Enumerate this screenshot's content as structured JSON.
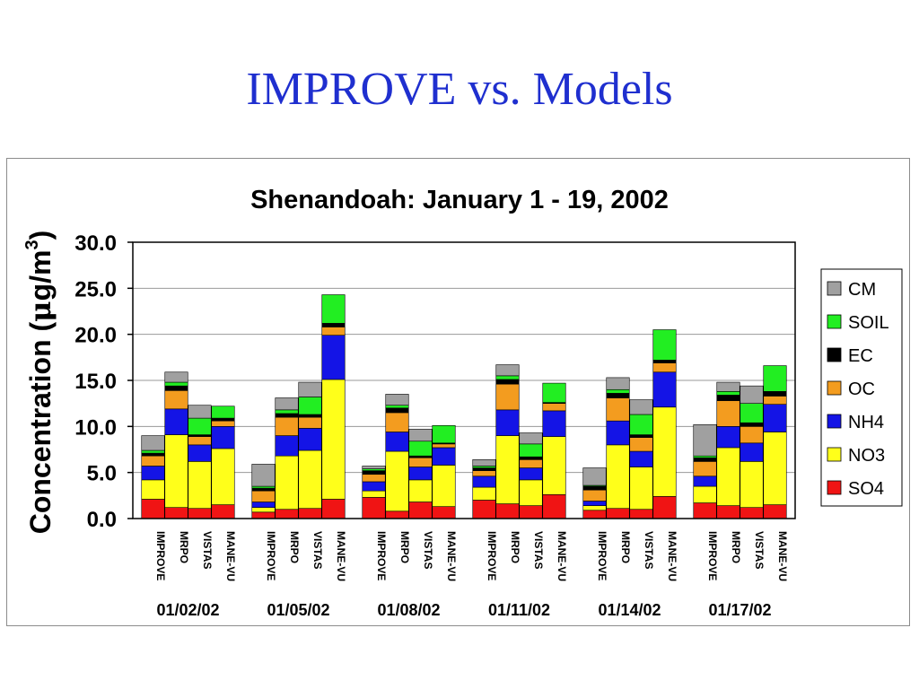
{
  "slide": {
    "title": "IMPROVE vs. Models"
  },
  "chart_data": {
    "type": "bar",
    "stacked": true,
    "title": "Shenandoah: January 1 - 19, 2002",
    "ylabel_main": "Concentration (",
    "ylabel_mu": "μ",
    "ylabel_rest": "g/m",
    "ylabel_sup": "3",
    "ylabel_close": ")",
    "ylim": [
      0,
      30
    ],
    "yticks": [
      "0.0",
      "5.0",
      "10.0",
      "15.0",
      "20.0",
      "25.0",
      "30.0"
    ],
    "grid": true,
    "legend_position": "right",
    "legend": [
      {
        "name": "CM",
        "color": "#a0a0a0"
      },
      {
        "name": "SOIL",
        "color": "#22ee22"
      },
      {
        "name": "EC",
        "color": "#000000"
      },
      {
        "name": "OC",
        "color": "#f39c1f"
      },
      {
        "name": "NH4",
        "color": "#1414e6"
      },
      {
        "name": "NO3",
        "color": "#ffff1a"
      },
      {
        "name": "SO4",
        "color": "#f01414"
      }
    ],
    "stack_order": [
      "SO4",
      "NO3",
      "NH4",
      "OC",
      "EC",
      "SOIL",
      "CM"
    ],
    "colors": {
      "SO4": "#f01414",
      "NO3": "#ffff1a",
      "NH4": "#1414e6",
      "OC": "#f39c1f",
      "EC": "#000000",
      "SOIL": "#22ee22",
      "CM": "#a0a0a0"
    },
    "models": [
      "IMPROVE",
      "MRPO",
      "VISTAS",
      "MANE-VU"
    ],
    "groups": [
      {
        "date": "01/02/02",
        "bars": [
          {
            "SO4": 2.1,
            "NO3": 2.1,
            "NH4": 1.5,
            "OC": 1.1,
            "EC": 0.3,
            "SOIL": 0.3,
            "CM": 1.6
          },
          {
            "SO4": 1.2,
            "NO3": 7.9,
            "NH4": 2.8,
            "OC": 2.0,
            "EC": 0.5,
            "SOIL": 0.4,
            "CM": 1.1
          },
          {
            "SO4": 1.1,
            "NO3": 5.1,
            "NH4": 1.8,
            "OC": 0.9,
            "EC": 0.2,
            "SOIL": 1.8,
            "CM": 1.4
          },
          {
            "SO4": 1.5,
            "NO3": 6.1,
            "NH4": 2.4,
            "OC": 0.6,
            "EC": 0.3,
            "SOIL": 1.3,
            "CM": 0.0
          }
        ]
      },
      {
        "date": "01/05/02",
        "bars": [
          {
            "SO4": 0.7,
            "NO3": 0.5,
            "NH4": 0.6,
            "OC": 1.2,
            "EC": 0.3,
            "SOIL": 0.2,
            "CM": 2.4
          },
          {
            "SO4": 1.0,
            "NO3": 5.8,
            "NH4": 2.2,
            "OC": 2.0,
            "EC": 0.4,
            "SOIL": 0.4,
            "CM": 1.3
          },
          {
            "SO4": 1.1,
            "NO3": 6.3,
            "NH4": 2.4,
            "OC": 1.2,
            "EC": 0.3,
            "SOIL": 1.9,
            "CM": 1.6
          },
          {
            "SO4": 2.1,
            "NO3": 13.0,
            "NH4": 4.8,
            "OC": 0.9,
            "EC": 0.4,
            "SOIL": 3.1,
            "CM": 0.0
          }
        ]
      },
      {
        "date": "01/08/02",
        "bars": [
          {
            "SO4": 2.3,
            "NO3": 0.7,
            "NH4": 1.0,
            "OC": 0.8,
            "EC": 0.4,
            "SOIL": 0.2,
            "CM": 0.3
          },
          {
            "SO4": 0.8,
            "NO3": 6.5,
            "NH4": 2.1,
            "OC": 2.1,
            "EC": 0.5,
            "SOIL": 0.3,
            "CM": 1.2
          },
          {
            "SO4": 1.8,
            "NO3": 2.4,
            "NH4": 1.4,
            "OC": 1.0,
            "EC": 0.2,
            "SOIL": 1.6,
            "CM": 1.3
          },
          {
            "SO4": 1.3,
            "NO3": 4.5,
            "NH4": 1.9,
            "OC": 0.4,
            "EC": 0.1,
            "SOIL": 1.9,
            "CM": 0.0
          }
        ]
      },
      {
        "date": "01/11/02",
        "bars": [
          {
            "SO4": 2.0,
            "NO3": 1.4,
            "NH4": 1.2,
            "OC": 0.6,
            "EC": 0.3,
            "SOIL": 0.2,
            "CM": 0.7
          },
          {
            "SO4": 1.6,
            "NO3": 7.4,
            "NH4": 2.8,
            "OC": 2.8,
            "EC": 0.5,
            "SOIL": 0.4,
            "CM": 1.2
          },
          {
            "SO4": 1.4,
            "NO3": 2.8,
            "NH4": 1.3,
            "OC": 0.9,
            "EC": 0.3,
            "SOIL": 1.4,
            "CM": 1.2
          },
          {
            "SO4": 2.6,
            "NO3": 6.3,
            "NH4": 2.8,
            "OC": 0.8,
            "EC": 0.1,
            "SOIL": 2.1,
            "CM": 0.0
          }
        ]
      },
      {
        "date": "01/14/02",
        "bars": [
          {
            "SO4": 0.9,
            "NO3": 0.5,
            "NH4": 0.5,
            "OC": 1.2,
            "EC": 0.4,
            "SOIL": 0.1,
            "CM": 1.9
          },
          {
            "SO4": 1.1,
            "NO3": 6.9,
            "NH4": 2.6,
            "OC": 2.5,
            "EC": 0.5,
            "SOIL": 0.4,
            "CM": 1.3
          },
          {
            "SO4": 1.0,
            "NO3": 4.6,
            "NH4": 1.7,
            "OC": 1.5,
            "EC": 0.3,
            "SOIL": 2.2,
            "CM": 1.6
          },
          {
            "SO4": 2.4,
            "NO3": 9.7,
            "NH4": 3.8,
            "OC": 1.0,
            "EC": 0.3,
            "SOIL": 3.3,
            "CM": 0.0
          }
        ]
      },
      {
        "date": "01/17/02",
        "bars": [
          {
            "SO4": 1.7,
            "NO3": 1.8,
            "NH4": 1.1,
            "OC": 1.6,
            "EC": 0.4,
            "SOIL": 0.2,
            "CM": 3.4
          },
          {
            "SO4": 1.4,
            "NO3": 6.3,
            "NH4": 2.3,
            "OC": 2.8,
            "EC": 0.6,
            "SOIL": 0.4,
            "CM": 1.0
          },
          {
            "SO4": 1.2,
            "NO3": 5.0,
            "NH4": 2.0,
            "OC": 1.8,
            "EC": 0.4,
            "SOIL": 2.1,
            "CM": 1.9
          },
          {
            "SO4": 1.5,
            "NO3": 7.9,
            "NH4": 3.0,
            "OC": 0.9,
            "EC": 0.5,
            "SOIL": 2.8,
            "CM": 0.0
          }
        ]
      }
    ]
  }
}
